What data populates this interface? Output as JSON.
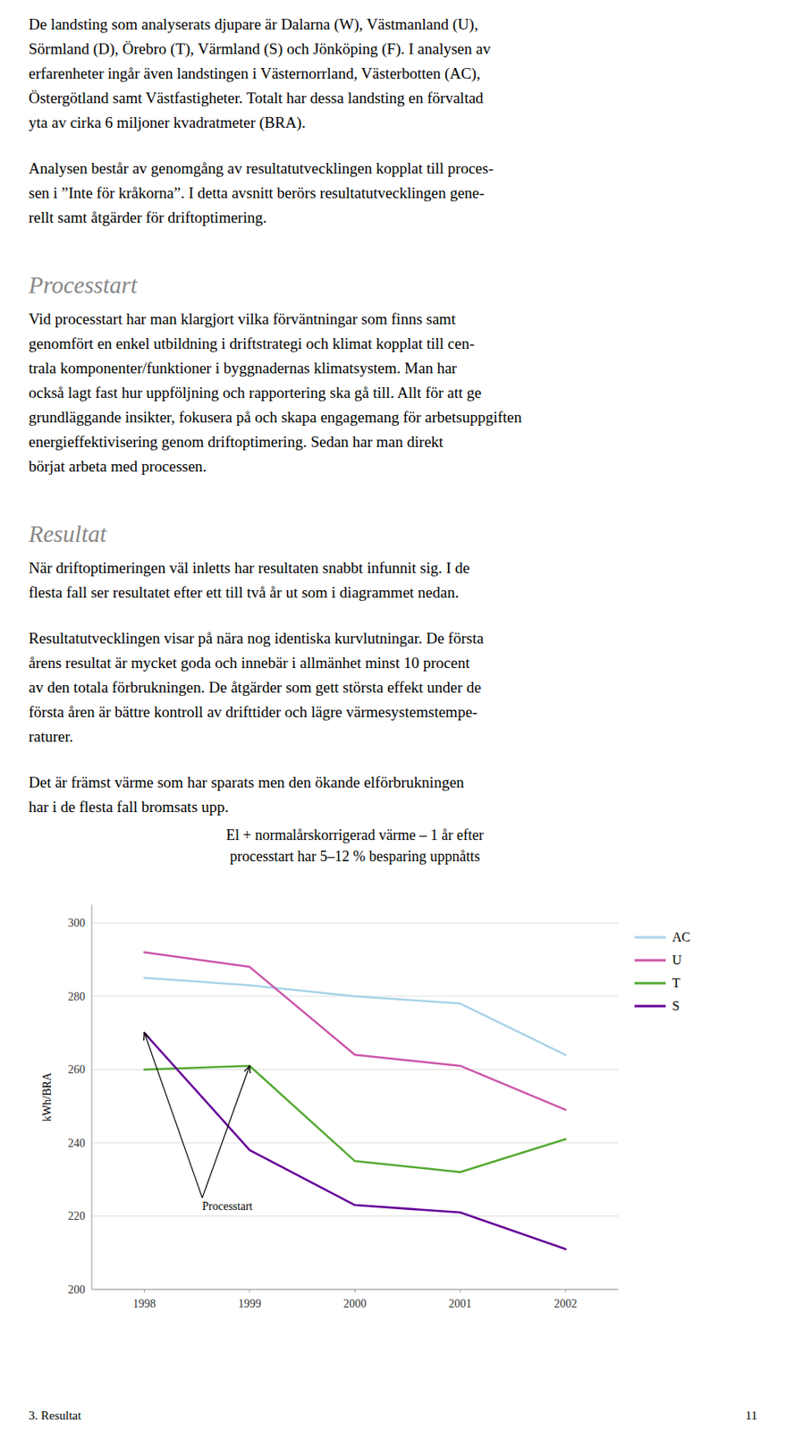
{
  "page": {
    "blocks": [
      {
        "kind": "paragraph",
        "lines": [
          "De landsting som analyserats djupare är Dalarna (W), Västmanland (U),",
          "Sörmland (D), Örebro (T), Värmland (S) och Jönköping (F). I analysen av",
          "erfarenheter ingår även landstingen i Västernorrland, Västerbotten (AC),",
          "Östergötland samt Västfastigheter. Totalt har dessa landsting en förvaltad",
          "yta av cirka 6 miljoner kvadratmeter (BRA)."
        ]
      },
      {
        "kind": "paragraph",
        "lines": [
          "Analysen består av genomgång av resultatutvecklingen kopplat till proces-",
          "sen i ”Inte för kråkorna”. I detta avsnitt berörs resultatutvecklingen gene-",
          "rellt samt åtgärder för driftoptimering."
        ]
      },
      {
        "kind": "heading",
        "text": "Processtart"
      },
      {
        "kind": "paragraph",
        "lines": [
          "Vid processtart har man klargjort vilka förväntningar som finns samt",
          "genomfört en enkel utbildning i driftstrategi och klimat kopplat till cen-",
          "trala komponenter/funktioner i byggnadernas klimatsystem. Man har",
          "också lagt fast hur uppföljning och rapportering ska gå till. Allt för att ge",
          "grundläggande insikter, fokusera på och skapa engagemang för arbetsuppgiften",
          "energieffektivisering genom driftoptimering. Sedan har man direkt",
          "börjat arbeta med processen."
        ]
      },
      {
        "kind": "heading",
        "text": "Resultat"
      },
      {
        "kind": "paragraph",
        "lines": [
          "När driftoptimeringen väl inletts har resultaten snabbt infunnit sig. I de",
          "flesta fall ser resultatet efter ett till två år ut som i diagrammet nedan."
        ]
      },
      {
        "kind": "paragraph",
        "lines": [
          "Resultatutvecklingen visar på nära nog identiska kurvlutningar. De första",
          "årens resultat är mycket goda och innebär i allmänhet minst 10 procent",
          "av den totala förbrukningen. De åtgärder som gett största effekt under de",
          "första åren är bättre kontroll av drifttider och lägre värmesystemstempe-",
          "raturer."
        ]
      },
      {
        "kind": "paragraph",
        "lines": [
          "Det är främst värme som har sparats men den ökande elförbrukningen",
          "har i de flesta fall bromsats upp."
        ]
      }
    ],
    "footer_left": "3. Resultat",
    "footer_right": "11"
  },
  "chart_data": {
    "type": "line",
    "title": "El + normalårskorrigerad värme – 1 år efter",
    "subtitle": "processtart har 5–12 % besparing uppnåtts",
    "y_label": "kWh/BRA",
    "x": [
      1998,
      1999,
      2000,
      2001,
      2002
    ],
    "xlim": [
      1997.5,
      2002.5
    ],
    "xticks": [
      1998,
      1999,
      2000,
      2001,
      2002
    ],
    "ylim": [
      200,
      305
    ],
    "yticks": [
      200,
      220,
      240,
      260,
      280,
      300
    ],
    "grid": true,
    "legend": "right",
    "series": [
      {
        "name": "AC",
        "color": "#a8d4e8",
        "values": [
          285,
          283,
          280,
          278,
          264
        ]
      },
      {
        "name": "U",
        "color": "#cc55aa",
        "values": [
          292,
          288,
          264,
          261,
          249
        ]
      },
      {
        "name": "T",
        "color": "#55aa33",
        "values": [
          260,
          261,
          235,
          232,
          241
        ]
      },
      {
        "name": "S",
        "color": "#660099",
        "values": [
          270,
          238,
          223,
          221,
          211
        ]
      }
    ],
    "annotations": [
      {
        "text": "Processtart",
        "x": 1998.55,
        "y": 225,
        "arrows": [
          {
            "x": 1998,
            "y": 270
          },
          {
            "x": 1999,
            "y": 261
          }
        ]
      }
    ]
  }
}
